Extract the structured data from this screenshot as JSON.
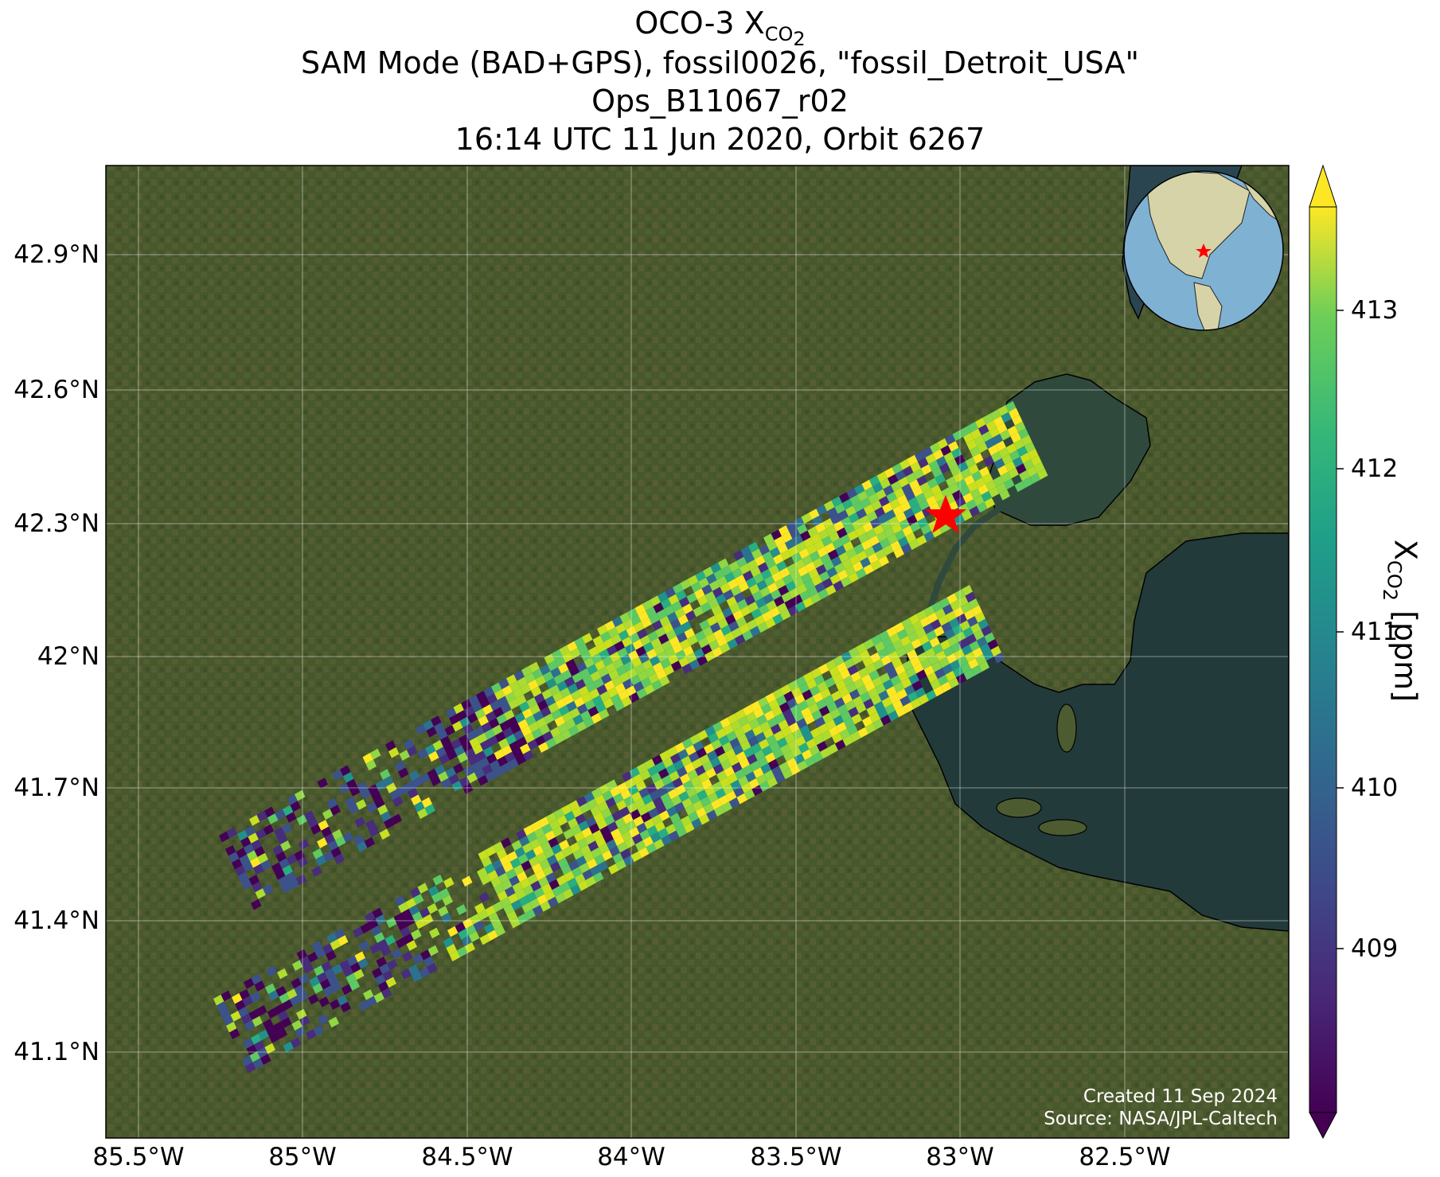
{
  "header": {
    "title_main": "OCO-3 X",
    "title_sub": "CO",
    "title_sub2": "2",
    "line2": "SAM Mode (BAD+GPS), fossil0026, \"fossil_Detroit_USA\"",
    "line3": "Ops_B11067_r02",
    "line4": "16:14 UTC 11 Jun 2020, Orbit 6267"
  },
  "axes": {
    "x_ticks": [
      "85.5°W",
      "85°W",
      "84.5°W",
      "84°W",
      "83.5°W",
      "83°W",
      "82.5°W"
    ],
    "y_ticks": [
      "42.9°N",
      "42.6°N",
      "42.3°N",
      "42°N",
      "41.7°N",
      "41.4°N",
      "41.1°N"
    ]
  },
  "colorbar": {
    "ticks": [
      "413",
      "412",
      "411",
      "410",
      "409"
    ],
    "label_main": "X",
    "label_sub": "CO",
    "label_sub2": "2",
    "label_unit": " [ppm]",
    "colormap": "viridis",
    "range": [
      408.0,
      413.8
    ]
  },
  "credits": {
    "created": "Created 11 Sep 2024",
    "source": "Source: NASA/JPL-Caltech"
  },
  "target": {
    "marker": "red-star",
    "lon": -83.05,
    "lat": 42.33
  },
  "colors": {
    "land": "#4a5a2e",
    "water": "#2f4a3c",
    "lake_erie": "#223a3a",
    "star": "#ff0000"
  }
}
